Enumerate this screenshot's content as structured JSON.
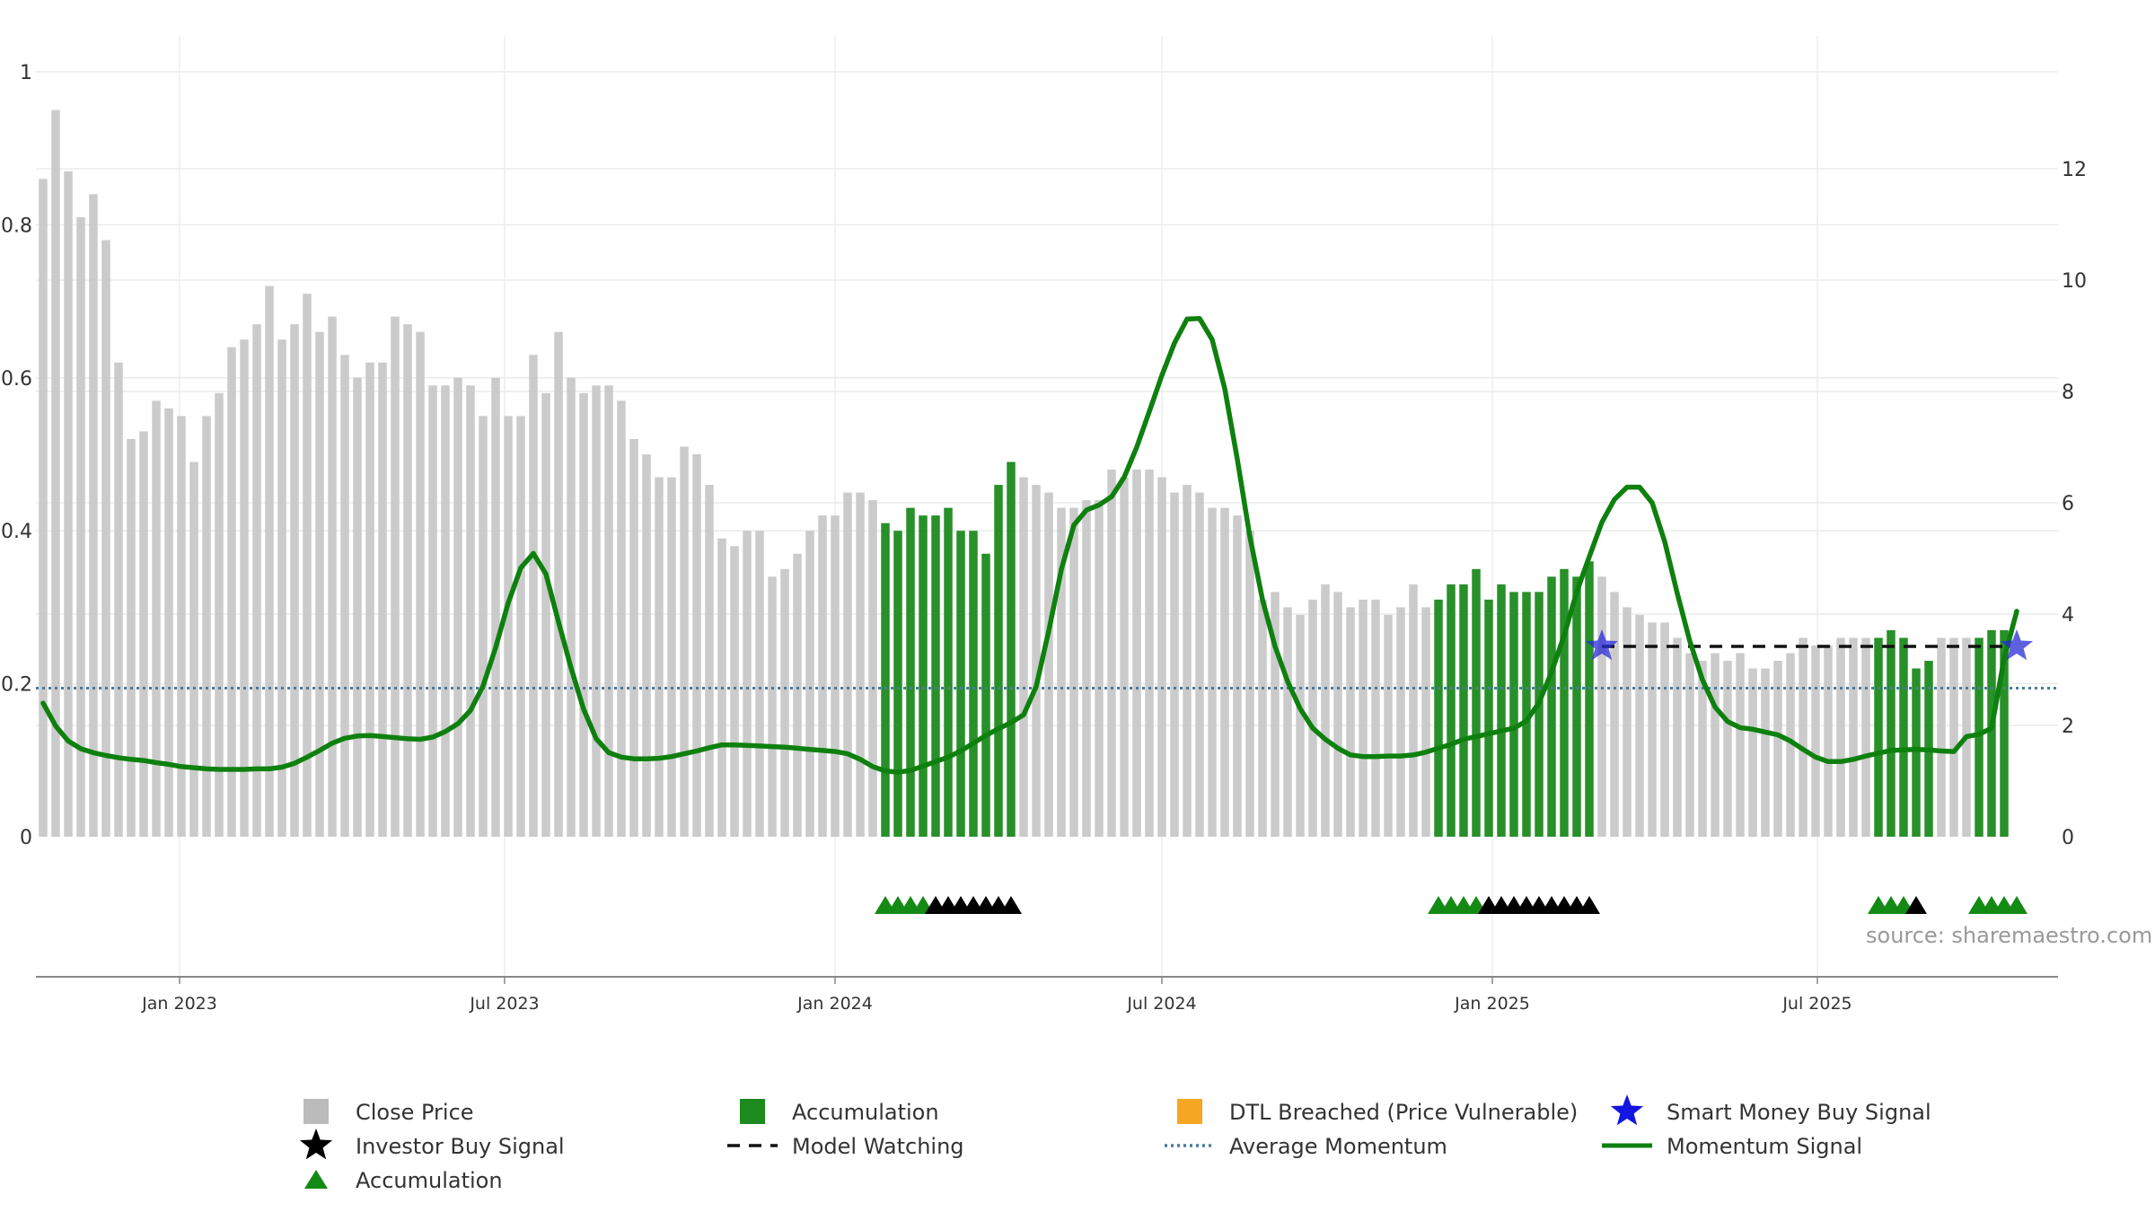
{
  "chart_data": {
    "type": "bar",
    "source_label": "source: sharemaestro.com",
    "y_left": {
      "ticks": [
        "0",
        "0.2",
        "0.4",
        "0.6",
        "0.8",
        "1"
      ],
      "ylim": [
        0,
        1.0
      ]
    },
    "y_right": {
      "ticks": [
        "0",
        "2",
        "4",
        "6",
        "8",
        "10",
        "12"
      ],
      "ylim": [
        0,
        13.33
      ]
    },
    "x_ticks": [
      "Jan 2023",
      "Jul 2023",
      "Jan 2024",
      "Jul 2024",
      "Jan 2025",
      "Jul 2025"
    ],
    "x_tick_dates": [
      "2023-01-01",
      "2023-07-01",
      "2024-01-01",
      "2024-07-01",
      "2025-01-01",
      "2025-07-01"
    ],
    "x_start_date": "2022-10-17",
    "bar_interval_days": 7,
    "grid": true,
    "legend": {
      "placement": "bottom",
      "items": [
        {
          "label": "Close Price",
          "marker": "gray-square"
        },
        {
          "label": "Accumulation",
          "marker": "green-square"
        },
        {
          "label": "DTL Breached (Price Vulnerable)",
          "marker": "orange-square"
        },
        {
          "label": "Smart Money Buy Signal",
          "marker": "blue-star"
        },
        {
          "label": "Investor Buy Signal",
          "marker": "black-star"
        },
        {
          "label": "Model Watching",
          "marker": "black-dashed-line"
        },
        {
          "label": "Average Momentum",
          "marker": "blue-dotted-line"
        },
        {
          "label": "Momentum Signal",
          "marker": "green-line"
        },
        {
          "label": "Accumulation",
          "marker": "green-triangle"
        }
      ]
    },
    "close_price": [
      0.86,
      0.95,
      0.87,
      0.81,
      0.84,
      0.78,
      0.62,
      0.52,
      0.53,
      0.57,
      0.56,
      0.55,
      0.49,
      0.55,
      0.58,
      0.64,
      0.65,
      0.67,
      0.72,
      0.65,
      0.67,
      0.71,
      0.66,
      0.68,
      0.63,
      0.6,
      0.62,
      0.62,
      0.68,
      0.67,
      0.66,
      0.59,
      0.59,
      0.6,
      0.59,
      0.55,
      0.6,
      0.55,
      0.55,
      0.63,
      0.58,
      0.66,
      0.6,
      0.58,
      0.59,
      0.59,
      0.57,
      0.52,
      0.5,
      0.47,
      0.47,
      0.51,
      0.5,
      0.46,
      0.39,
      0.38,
      0.4,
      0.4,
      0.34,
      0.35,
      0.37,
      0.4,
      0.42,
      0.42,
      0.45,
      0.45,
      0.44,
      0.41,
      0.4,
      0.43,
      0.42,
      0.42,
      0.43,
      0.4,
      0.4,
      0.37,
      0.46,
      0.49,
      0.47,
      0.46,
      0.45,
      0.43,
      0.43,
      0.44,
      0.44,
      0.48,
      0.47,
      0.48,
      0.48,
      0.47,
      0.45,
      0.46,
      0.45,
      0.43,
      0.43,
      0.42,
      0.4,
      0.31,
      0.32,
      0.3,
      0.29,
      0.31,
      0.33,
      0.32,
      0.3,
      0.31,
      0.31,
      0.29,
      0.3,
      0.33,
      0.3,
      0.31,
      0.33,
      0.33,
      0.35,
      0.31,
      0.33,
      0.32,
      0.32,
      0.32,
      0.34,
      0.35,
      0.34,
      0.36,
      0.34,
      0.32,
      0.3,
      0.29,
      0.28,
      0.28,
      0.26,
      0.24,
      0.23,
      0.24,
      0.23,
      0.24,
      0.22,
      0.22,
      0.23,
      0.24,
      0.26,
      0.25,
      0.25,
      0.26,
      0.26,
      0.26,
      0.26,
      0.27,
      0.26,
      0.22,
      0.23,
      0.26,
      0.26,
      0.26,
      0.26,
      0.27,
      0.27
    ],
    "accumulation_ranges": [
      [
        67,
        77
      ],
      [
        111,
        123
      ],
      [
        146,
        150
      ],
      [
        154,
        158
      ]
    ],
    "momentum_signal": [
      2.4,
      1.99,
      1.72,
      1.58,
      1.51,
      1.46,
      1.42,
      1.39,
      1.37,
      1.33,
      1.3,
      1.26,
      1.24,
      1.22,
      1.21,
      1.21,
      1.21,
      1.22,
      1.22,
      1.25,
      1.32,
      1.43,
      1.55,
      1.68,
      1.77,
      1.81,
      1.82,
      1.8,
      1.78,
      1.76,
      1.75,
      1.79,
      1.89,
      2.03,
      2.27,
      2.71,
      3.4,
      4.2,
      4.83,
      5.09,
      4.72,
      3.86,
      3.03,
      2.29,
      1.76,
      1.51,
      1.43,
      1.4,
      1.4,
      1.41,
      1.44,
      1.49,
      1.54,
      1.6,
      1.65,
      1.65,
      1.64,
      1.63,
      1.62,
      1.61,
      1.59,
      1.57,
      1.55,
      1.53,
      1.49,
      1.39,
      1.26,
      1.18,
      1.16,
      1.19,
      1.27,
      1.35,
      1.43,
      1.54,
      1.68,
      1.82,
      1.94,
      2.05,
      2.19,
      2.7,
      3.7,
      4.8,
      5.6,
      5.87,
      5.96,
      6.11,
      6.46,
      7.0,
      7.64,
      8.29,
      8.87,
      9.3,
      9.31,
      8.93,
      8.05,
      6.78,
      5.39,
      4.26,
      3.42,
      2.79,
      2.3,
      1.95,
      1.75,
      1.59,
      1.47,
      1.44,
      1.44,
      1.45,
      1.45,
      1.47,
      1.52,
      1.59,
      1.66,
      1.75,
      1.8,
      1.85,
      1.9,
      1.95,
      2.08,
      2.41,
      2.96,
      3.62,
      4.4,
      5.03,
      5.65,
      6.06,
      6.28,
      6.28,
      6.0,
      5.3,
      4.37,
      3.51,
      2.82,
      2.33,
      2.07,
      1.96,
      1.93,
      1.88,
      1.83,
      1.72,
      1.57,
      1.43,
      1.35,
      1.35,
      1.39,
      1.45,
      1.5,
      1.55,
      1.56,
      1.57,
      1.56,
      1.54,
      1.53,
      1.8,
      1.84,
      1.95,
      3.2,
      4.05
    ],
    "model_watching": {
      "from_index": 124,
      "value": 3.42
    },
    "average_momentum": 2.67,
    "smart_money_buy_signals": [
      {
        "index": 124,
        "value": 3.42
      },
      {
        "index": 157,
        "value": 3.42
      }
    ],
    "accumulation_markers": {
      "green": [
        67,
        68,
        69,
        70,
        111,
        112,
        113,
        114,
        146,
        147,
        148,
        154,
        155,
        156,
        157
      ],
      "black": [
        71,
        72,
        73,
        74,
        75,
        76,
        77,
        115,
        116,
        117,
        118,
        119,
        120,
        121,
        122,
        123,
        149
      ]
    }
  }
}
